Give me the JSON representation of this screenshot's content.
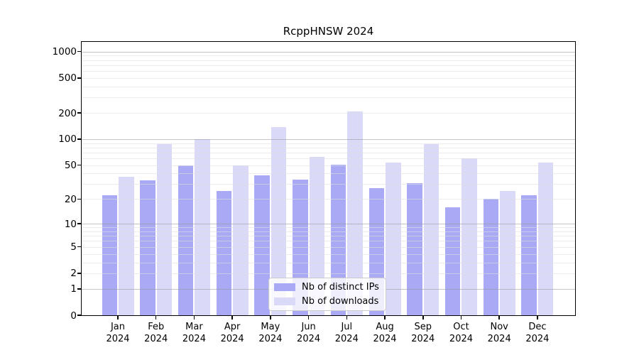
{
  "chart_data": {
    "type": "bar",
    "title": "RcppHNSW 2024",
    "categories": [
      "Jan",
      "Feb",
      "Mar",
      "Apr",
      "May",
      "Jun",
      "Jul",
      "Aug",
      "Sep",
      "Oct",
      "Nov",
      "Dec"
    ],
    "xtick_year": "2024",
    "series": [
      {
        "name": "Nb of distinct IPs",
        "color": "#a9a9f5",
        "values": [
          22,
          33,
          50,
          25,
          38,
          34,
          51,
          27,
          31,
          16,
          20,
          22
        ]
      },
      {
        "name": "Nb of downloads",
        "color": "#dadaf8",
        "values": [
          37,
          87,
          100,
          50,
          138,
          63,
          206,
          54,
          88,
          60,
          25,
          54
        ]
      }
    ],
    "yscale": "log1p",
    "yticks": [
      0,
      1,
      2,
      5,
      10,
      20,
      50,
      100,
      200,
      500,
      1000
    ],
    "ylim": [
      0,
      1200
    ],
    "grid": true,
    "legend_position": "lower center"
  },
  "legend": {
    "items": [
      {
        "label": "Nb of distinct IPs"
      },
      {
        "label": "Nb of downloads"
      }
    ]
  },
  "colors": {
    "ips_bar": "#a9a9f5",
    "downloads_bar": "#dadaf8",
    "grid_major": "#969696",
    "grid_minor": "#dfdfdf",
    "spine": "#000000",
    "legend_border": "#cccccc"
  }
}
